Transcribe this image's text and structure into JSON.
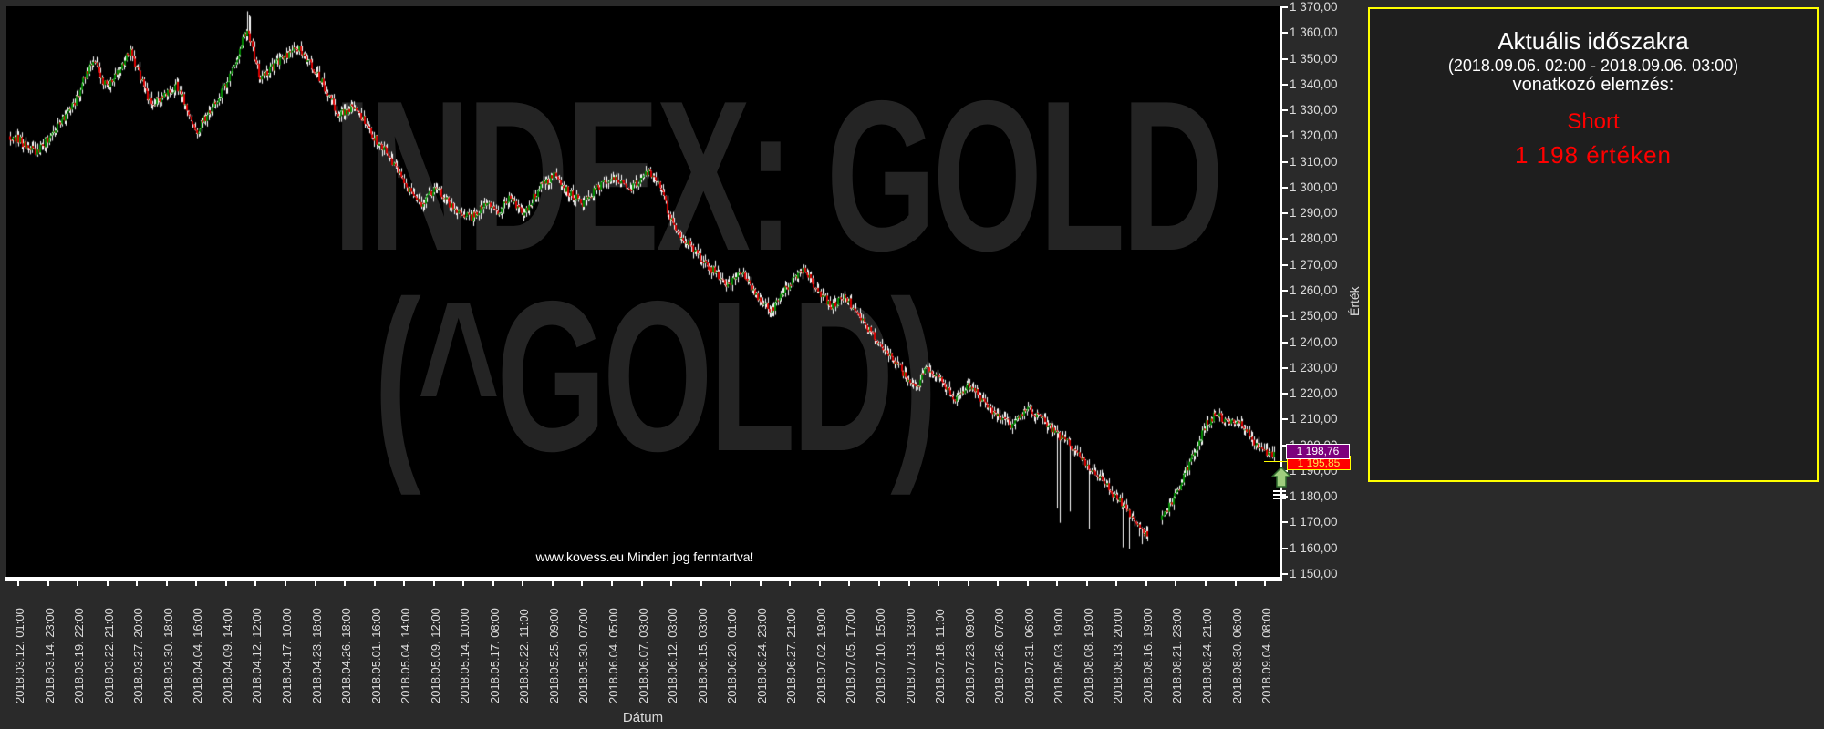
{
  "page": {
    "background": "#2a2a2a"
  },
  "chart": {
    "watermark_line1": "INDEX: GOLD",
    "watermark_line2": "(^GOLD)",
    "copyright": "www.kovess.eu Minden jog fenntartva!",
    "xlabel": "Dátum",
    "ylabel": "Érték",
    "y_ticks": [
      "1 370,00",
      "1 360,00",
      "1 350,00",
      "1 340,00",
      "1 330,00",
      "1 320,00",
      "1 310,00",
      "1 300,00",
      "1 290,00",
      "1 280,00",
      "1 270,00",
      "1 260,00",
      "1 250,00",
      "1 240,00",
      "1 230,00",
      "1 220,00",
      "1 210,00",
      "1 200,00",
      "1 190,00",
      "1 180,00",
      "1 170,00",
      "1 160,00",
      "1 150,00"
    ],
    "x_ticks": [
      "2018.03.12. 01:00",
      "2018.03.14. 23:00",
      "2018.03.19. 22:00",
      "2018.03.22. 21:00",
      "2018.03.27. 20:00",
      "2018.03.30. 18:00",
      "2018.04.04. 16:00",
      "2018.04.09. 14:00",
      "2018.04.12. 12:00",
      "2018.04.17. 10:00",
      "2018.04.23. 18:00",
      "2018.04.26. 18:00",
      "2018.05.01. 16:00",
      "2018.05.04. 14:00",
      "2018.05.09. 12:00",
      "2018.05.14. 10:00",
      "2018.05.17. 08:00",
      "2018.05.22. 11:00",
      "2018.05.25. 09:00",
      "2018.05.30. 07:00",
      "2018.06.04. 05:00",
      "2018.06.07. 03:00",
      "2018.06.12. 03:00",
      "2018.06.15. 03:00",
      "2018.06.20. 01:00",
      "2018.06.24. 23:00",
      "2018.06.27. 21:00",
      "2018.07.02. 19:00",
      "2018.07.05. 17:00",
      "2018.07.10. 15:00",
      "2018.07.13. 13:00",
      "2018.07.18. 11:00",
      "2018.07.23. 09:00",
      "2018.07.26. 07:00",
      "2018.07.31. 06:00",
      "2018.08.03. 19:00",
      "2018.08.08. 19:00",
      "2018.08.13. 20:00",
      "2018.08.16. 19:00",
      "2018.08.21. 23:00",
      "2018.08.24. 21:00",
      "2018.08.30. 06:00",
      "2018.09.04. 08:00"
    ],
    "price_markers": {
      "entry": {
        "label": "1 198,76",
        "color": "#7d007d"
      },
      "last": {
        "label": "1 195,85",
        "color": "#ff0000"
      }
    }
  },
  "panel": {
    "title": "Aktuális időszakra",
    "period": "(2018.09.06. 02:00 - 2018.09.06. 03:00)",
    "subtitle": "vonatkozó elemzés:",
    "signal": "Short",
    "value": "1 198 értéken",
    "signal_color": "#ff0000",
    "border_color": "#ffff00"
  },
  "chart_data": {
    "type": "candlestick",
    "title": "INDEX: GOLD (^GOLD)",
    "xlabel": "Dátum",
    "ylabel": "Érték",
    "x_range": [
      "2018.03.12. 01:00",
      "2018.09.04. 08:00"
    ],
    "y_range": [
      1150,
      1372
    ],
    "grid": false,
    "colors": {
      "up": "#008c00",
      "down": "#dd0000",
      "wick": "#ffffff"
    },
    "path": [
      [
        0.002,
        1320
      ],
      [
        0.022,
        1314
      ],
      [
        0.05,
        1332
      ],
      [
        0.066,
        1350
      ],
      [
        0.077,
        1338
      ],
      [
        0.095,
        1353
      ],
      [
        0.112,
        1332
      ],
      [
        0.132,
        1340
      ],
      [
        0.148,
        1322
      ],
      [
        0.173,
        1342
      ],
      [
        0.188,
        1362
      ],
      [
        0.198,
        1342
      ],
      [
        0.214,
        1350
      ],
      [
        0.228,
        1354
      ],
      [
        0.246,
        1342
      ],
      [
        0.26,
        1328
      ],
      [
        0.273,
        1332
      ],
      [
        0.287,
        1320
      ],
      [
        0.3,
        1312
      ],
      [
        0.314,
        1300
      ],
      [
        0.325,
        1293
      ],
      [
        0.337,
        1300
      ],
      [
        0.351,
        1292
      ],
      [
        0.364,
        1288
      ],
      [
        0.378,
        1295
      ],
      [
        0.385,
        1290
      ],
      [
        0.396,
        1296
      ],
      [
        0.407,
        1290
      ],
      [
        0.419,
        1300
      ],
      [
        0.431,
        1305
      ],
      [
        0.442,
        1298
      ],
      [
        0.453,
        1294
      ],
      [
        0.465,
        1300
      ],
      [
        0.478,
        1304
      ],
      [
        0.492,
        1300
      ],
      [
        0.504,
        1306
      ],
      [
        0.515,
        1300
      ],
      [
        0.522,
        1288
      ],
      [
        0.533,
        1280
      ],
      [
        0.542,
        1275
      ],
      [
        0.556,
        1268
      ],
      [
        0.568,
        1262
      ],
      [
        0.579,
        1268
      ],
      [
        0.59,
        1258
      ],
      [
        0.602,
        1252
      ],
      [
        0.615,
        1262
      ],
      [
        0.629,
        1268
      ],
      [
        0.638,
        1260
      ],
      [
        0.65,
        1254
      ],
      [
        0.661,
        1258
      ],
      [
        0.672,
        1250
      ],
      [
        0.684,
        1242
      ],
      [
        0.696,
        1235
      ],
      [
        0.707,
        1228
      ],
      [
        0.716,
        1222
      ],
      [
        0.725,
        1230
      ],
      [
        0.736,
        1225
      ],
      [
        0.748,
        1218
      ],
      [
        0.76,
        1224
      ],
      [
        0.771,
        1216
      ],
      [
        0.781,
        1212
      ],
      [
        0.793,
        1208
      ],
      [
        0.805,
        1214
      ],
      [
        0.816,
        1210
      ],
      [
        0.827,
        1205
      ],
      [
        0.843,
        1198
      ],
      [
        0.857,
        1190
      ],
      [
        0.871,
        1182
      ],
      [
        0.884,
        1175
      ],
      [
        0.894,
        1168
      ],
      [
        0.9,
        1166
      ],
      [
        0.912,
        1172
      ],
      [
        0.926,
        1185
      ],
      [
        0.937,
        1198
      ],
      [
        0.946,
        1208
      ],
      [
        0.955,
        1213
      ],
      [
        0.964,
        1208
      ],
      [
        0.973,
        1210
      ],
      [
        0.982,
        1203
      ],
      [
        0.989,
        1198
      ],
      [
        1.0,
        1197
      ]
    ],
    "low_wick_zones": [
      [
        0.825,
        0.845,
        1170,
        0.16
      ],
      [
        0.85,
        0.865,
        1166,
        0.18
      ],
      [
        0.878,
        0.899,
        1159,
        0.2
      ]
    ],
    "high_wick_zones": [
      [
        0.185,
        0.191,
        1369,
        0.5
      ]
    ],
    "gap": [
      0.9005,
      0.9105
    ],
    "last_price": 1195.85,
    "entry_price": 1198.76
  }
}
